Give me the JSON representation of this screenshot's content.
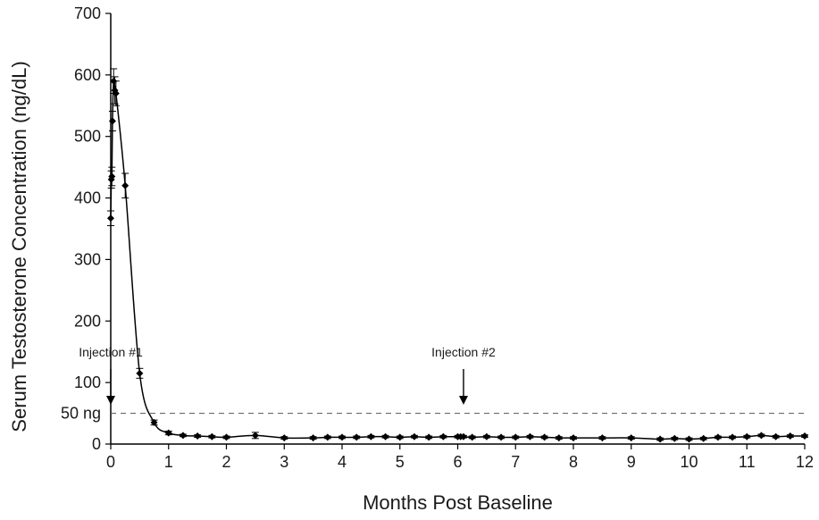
{
  "chart_data": {
    "type": "line",
    "xlabel": "Months Post Baseline",
    "ylabel": "Serum Testosterone Concentration (ng/dL)",
    "xlim": [
      0,
      12
    ],
    "ylim": [
      0,
      700
    ],
    "x_ticks": [
      "0",
      "1",
      "2",
      "3",
      "4",
      "5",
      "6",
      "7",
      "8",
      "9",
      "10",
      "11",
      "12"
    ],
    "y_ticks": [
      "0",
      "100",
      "200",
      "300",
      "400",
      "500",
      "600",
      "700"
    ],
    "reference_line": {
      "value": 50,
      "label": "50 ng",
      "style": "dashed"
    },
    "annotations": [
      {
        "text": "Injection #1",
        "x": 0
      },
      {
        "text": "Injection #2",
        "x": 6.1
      }
    ],
    "series": [
      {
        "marker": "diamond",
        "color": "#000000",
        "x": [
          0,
          0.01,
          0.02,
          0.03,
          0.05,
          0.07,
          0.09,
          0.25,
          0.5,
          0.75,
          1.0,
          1.25,
          1.5,
          1.75,
          2.0,
          2.5,
          3.0,
          3.5,
          3.75,
          4.0,
          4.25,
          4.5,
          4.75,
          5.0,
          5.25,
          5.5,
          5.75,
          6.0,
          6.05,
          6.1,
          6.25,
          6.5,
          6.75,
          7.0,
          7.25,
          7.5,
          7.75,
          8.0,
          8.5,
          9.0,
          9.5,
          9.75,
          10.0,
          10.25,
          10.5,
          10.75,
          11.0,
          11.25,
          11.5,
          11.75,
          12.0
        ],
        "y": [
          367,
          430,
          435,
          525,
          590,
          575,
          570,
          420,
          115,
          35,
          18,
          14,
          13,
          12,
          11,
          14,
          10,
          10,
          11,
          11,
          11,
          12,
          12,
          11,
          12,
          11,
          12,
          12,
          12,
          12,
          11,
          12,
          11,
          11,
          12,
          11,
          10,
          10,
          10,
          10,
          8,
          9,
          8,
          9,
          11,
          11,
          12,
          14,
          12,
          13,
          13
        ],
        "error": [
          12,
          14,
          15,
          16,
          20,
          22,
          20,
          20,
          8,
          4,
          3,
          2,
          2,
          2,
          2,
          5,
          2,
          2,
          2,
          2,
          2,
          2,
          2,
          2,
          2,
          2,
          2,
          2,
          2,
          2,
          2,
          2,
          2,
          2,
          2,
          2,
          2,
          2,
          2,
          2,
          2,
          2,
          2,
          2,
          2,
          2,
          2,
          2,
          2,
          2,
          2
        ]
      }
    ]
  }
}
